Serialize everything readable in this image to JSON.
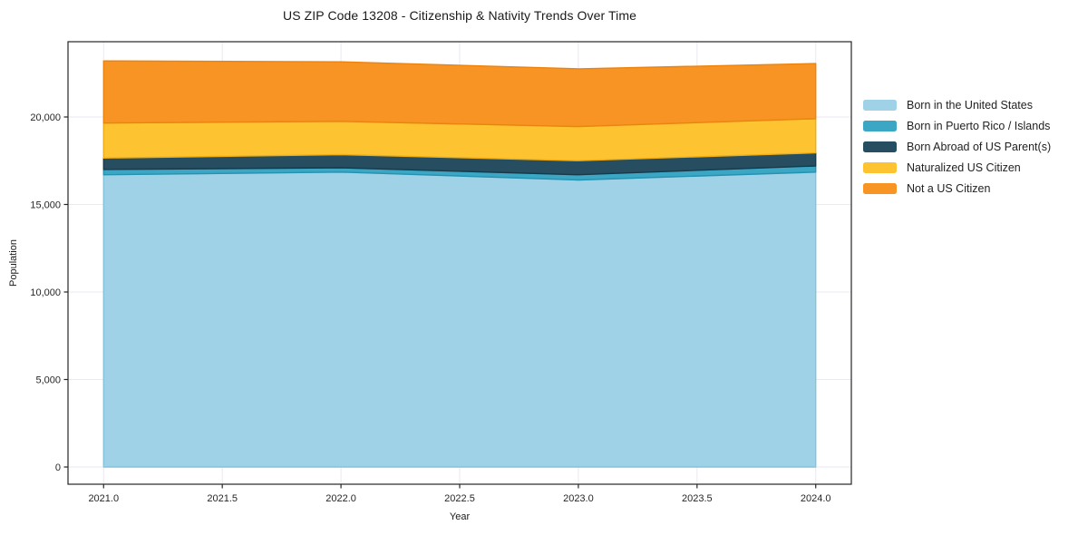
{
  "chart_data": {
    "type": "area",
    "stacked": true,
    "title": "US ZIP Code 13208 - Citizenship & Nativity Trends Over Time",
    "xlabel": "Year",
    "ylabel": "Population",
    "x": [
      2021,
      2022,
      2023,
      2024
    ],
    "series": [
      {
        "name": "Born in the United States",
        "color": "#A0D2E7",
        "edge_color": "#85C2DC",
        "values": [
          16700,
          16850,
          16400,
          16850
        ]
      },
      {
        "name": "Born in Puerto Rico / Islands",
        "color": "#3BA7C4",
        "edge_color": "#2492B1",
        "values": [
          300,
          250,
          300,
          350
        ]
      },
      {
        "name": "Born Abroad of US Parent(s)",
        "color": "#264E60",
        "edge_color": "#18394A",
        "values": [
          650,
          750,
          800,
          750
        ]
      },
      {
        "name": "Naturalized US Citizen",
        "color": "#FDC330",
        "edge_color": "#EFAD15",
        "values": [
          2000,
          1900,
          1950,
          1950
        ]
      },
      {
        "name": "Not a US Citizen",
        "color": "#F89424",
        "edge_color": "#EA8310",
        "values": [
          3550,
          3400,
          3300,
          3150
        ]
      }
    ],
    "totals": [
      23200,
      23150,
      22750,
      23050
    ],
    "xticks": [
      2021.0,
      2021.5,
      2022.0,
      2022.5,
      2023.0,
      2023.5,
      2024.0
    ],
    "xtick_labels": [
      "2021.0",
      "2021.5",
      "2022.0",
      "2022.5",
      "2023.0",
      "2023.5",
      "2024.0"
    ],
    "yticks": [
      0,
      5000,
      10000,
      15000,
      20000
    ],
    "ytick_labels": [
      "0",
      "5,000",
      "10,000",
      "15,000",
      "20,000"
    ],
    "xlim": [
      2020.85,
      2024.15
    ],
    "ylim": [
      -984,
      24300
    ],
    "grid": true,
    "grid_color": "#e9e9f0",
    "spine_color": "#262626",
    "tick_label_color": "#262626",
    "background": "#ffffff",
    "legend_position": "right of plot"
  }
}
